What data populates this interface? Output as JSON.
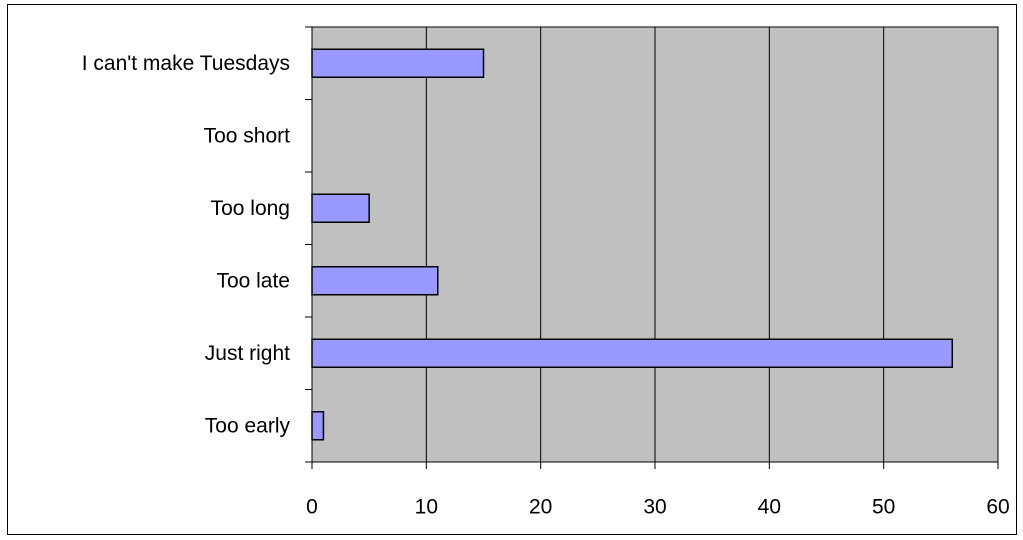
{
  "chart_data": {
    "type": "bar",
    "orientation": "horizontal",
    "categories": [
      "I can't make Tuesdays",
      "Too short",
      "Too long",
      "Too late",
      "Just right",
      "Too early"
    ],
    "values": [
      15,
      0,
      5,
      11,
      56,
      1
    ],
    "xlim": [
      0,
      60
    ],
    "xticks": [
      0,
      10,
      20,
      30,
      40,
      50,
      60
    ],
    "grid": "vertical",
    "legend": "none",
    "colors": {
      "plot_background": "#c0c0c0",
      "bar_fill": "#9999ff",
      "bar_stroke": "#000000",
      "gridline": "#000000"
    }
  }
}
